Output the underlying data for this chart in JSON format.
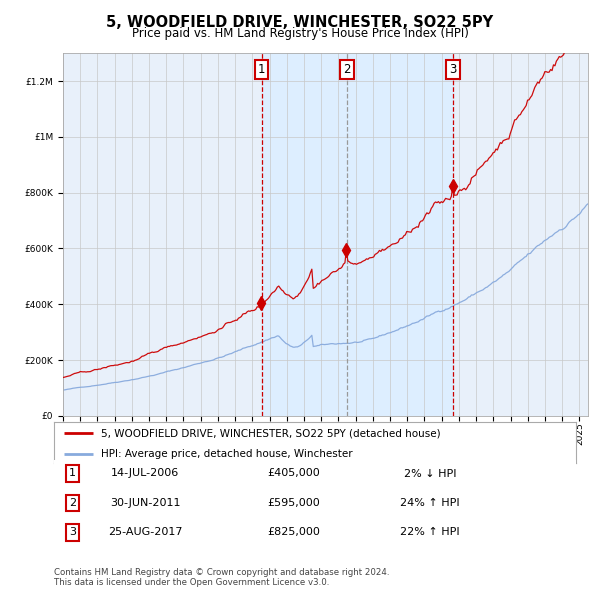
{
  "title": "5, WOODFIELD DRIVE, WINCHESTER, SO22 5PY",
  "subtitle": "Price paid vs. HM Land Registry's House Price Index (HPI)",
  "ylim": [
    0,
    1300000
  ],
  "yticks": [
    0,
    200000,
    400000,
    600000,
    800000,
    1000000,
    1200000
  ],
  "ytick_labels": [
    "£0",
    "£200K",
    "£400K",
    "£600K",
    "£800K",
    "£1M",
    "£1.2M"
  ],
  "sale_dates_num": [
    2006.54,
    2011.5,
    2017.65
  ],
  "sale_prices": [
    405000,
    595000,
    825000
  ],
  "sale_labels": [
    "1",
    "2",
    "3"
  ],
  "sale_info": [
    {
      "num": "1",
      "date": "14-JUL-2006",
      "price": "£405,000",
      "change": "2% ↓ HPI"
    },
    {
      "num": "2",
      "date": "30-JUN-2011",
      "price": "£595,000",
      "change": "24% ↑ HPI"
    },
    {
      "num": "3",
      "date": "25-AUG-2017",
      "price": "£825,000",
      "change": "22% ↑ HPI"
    }
  ],
  "legend_red": "5, WOODFIELD DRIVE, WINCHESTER, SO22 5PY (detached house)",
  "legend_blue": "HPI: Average price, detached house, Winchester",
  "footer": "Contains HM Land Registry data © Crown copyright and database right 2024.\nThis data is licensed under the Open Government Licence v3.0.",
  "red_color": "#cc0000",
  "blue_color": "#88aadd",
  "shade_color": "#ddeeff",
  "plot_bg": "#e8f0fa",
  "xlim_left": 1995.0,
  "xlim_right": 2025.5
}
